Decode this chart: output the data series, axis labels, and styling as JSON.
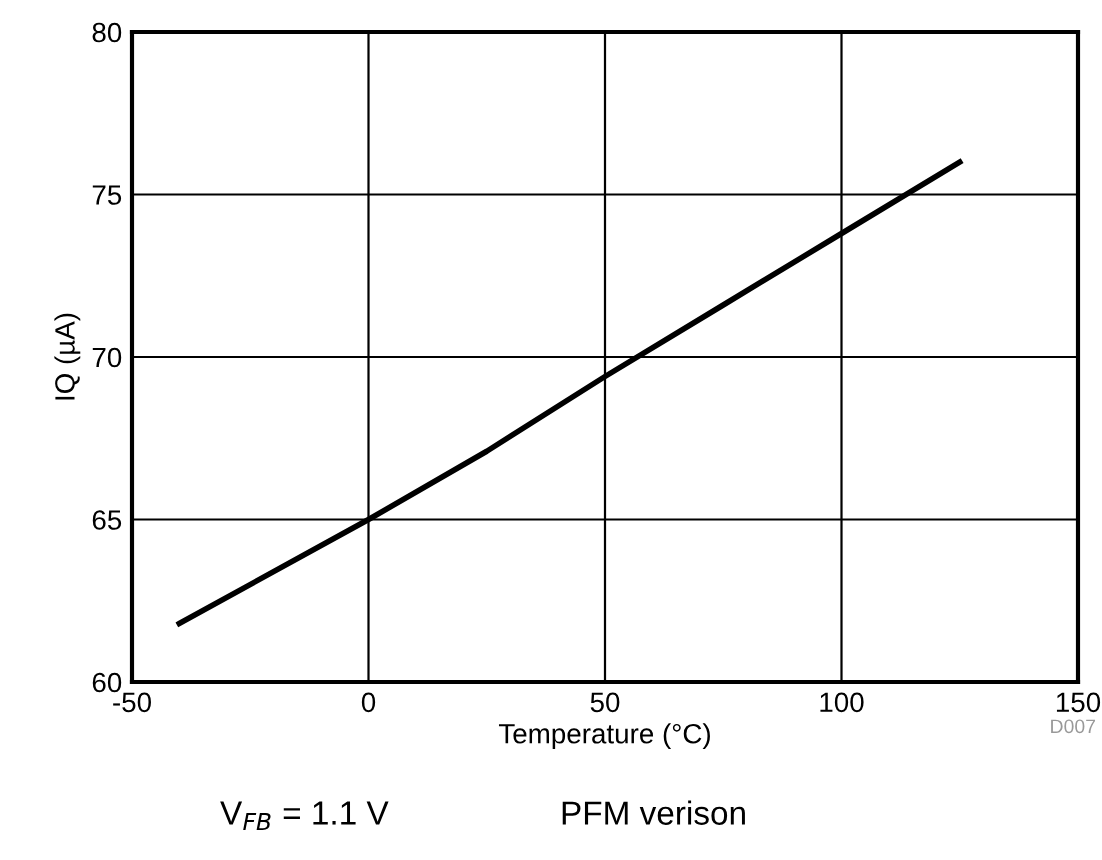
{
  "chart_data": {
    "type": "line",
    "xlabel": "Temperature (°C)",
    "ylabel": "IQ (µA)",
    "x": [
      -40,
      0,
      25,
      50,
      75,
      100,
      125
    ],
    "series": [
      {
        "color": "#000000",
        "values": [
          61.8,
          65,
          67.1,
          69.4,
          71.6,
          73.8,
          76
        ]
      }
    ],
    "xlim": [
      -50,
      150
    ],
    "ylim": [
      60,
      80
    ],
    "xticks": [
      -50,
      0,
      50,
      100,
      150
    ],
    "yticks": [
      60,
      65,
      70,
      75,
      80
    ],
    "grid": true,
    "marker": "none",
    "line_style": "solid",
    "annotations": [
      "D007",
      "V$_{FB}$ = 1.1 V",
      "PFM verison"
    ]
  }
}
